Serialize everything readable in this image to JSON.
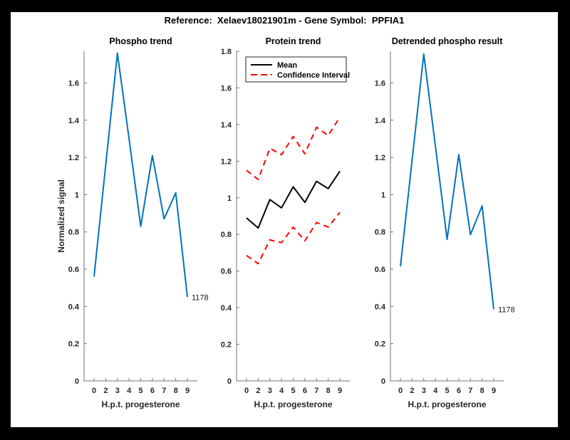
{
  "window": {
    "title": "Reference:  Xelaev18021901m - Gene Symbol:  PPFIA1"
  },
  "figure": {
    "background": "#000000",
    "canvas_color": "#ffffff",
    "axis_color": "#737373",
    "tick_label_color": "#262626",
    "title_color": "#000000",
    "accent_blue": "#0072BD",
    "accent_red": "#FF0000",
    "accent_black": "#000000"
  },
  "chart_data": [
    {
      "type": "line",
      "title": "Phospho trend",
      "xlabel": "H.p.t. progesterone",
      "ylabel": "Normalized signal",
      "x_ticklabels": [
        "0",
        "2",
        "3",
        "4",
        "5",
        "6",
        "7",
        "8",
        "9"
      ],
      "y_ticks": [
        0,
        0.2,
        0.4,
        0.6,
        0.8,
        1,
        1.2,
        1.4,
        1.6
      ],
      "y_ticklabels": [
        "0",
        "0.2",
        "0.4",
        "0.6",
        "0.8",
        "1",
        "1.2",
        "1.4",
        "1.6"
      ],
      "ylim": [
        0,
        1.77
      ],
      "grid": false,
      "series": [
        {
          "name": "phospho-signal",
          "color": "#0072BD",
          "dash": "solid",
          "width": 2,
          "values": [
            0.56,
            1.16,
            1.76,
            1.3,
            0.83,
            1.21,
            0.87,
            1.01,
            0.45
          ]
        }
      ],
      "annotations": [
        {
          "text": "1178",
          "attach": "last-point",
          "series": 0
        }
      ]
    },
    {
      "type": "line",
      "title": "Protein trend",
      "xlabel": "H.p.t. progesterone",
      "ylabel": "",
      "x_ticklabels": [
        "0",
        "2",
        "3",
        "4",
        "5",
        "6",
        "7",
        "8",
        "9"
      ],
      "y_ticks": [
        0,
        0.2,
        0.4,
        0.6,
        0.8,
        1,
        1.2,
        1.4,
        1.6,
        1.8
      ],
      "y_ticklabels": [
        "0",
        "0.2",
        "0.4",
        "0.6",
        "0.8",
        "1",
        "1.2",
        "1.4",
        "1.6",
        "1.8"
      ],
      "ylim": [
        0,
        1.8
      ],
      "grid": false,
      "legend": {
        "position": "top-left",
        "entries": [
          {
            "label": "Mean",
            "color": "#000000",
            "dash": "solid"
          },
          {
            "label": "Confidence Interval",
            "color": "#FF0000",
            "dash": "dashed"
          }
        ]
      },
      "series": [
        {
          "name": "mean",
          "color": "#000000",
          "dash": "solid",
          "width": 2,
          "values": [
            0.89,
            0.835,
            0.99,
            0.945,
            1.06,
            0.975,
            1.09,
            1.05,
            1.145
          ]
        },
        {
          "name": "confidence-interval-upper",
          "color": "#FF0000",
          "dash": "dashed",
          "width": 2,
          "values": [
            1.15,
            1.1,
            1.27,
            1.235,
            1.335,
            1.24,
            1.385,
            1.34,
            1.44
          ]
        },
        {
          "name": "confidence-interval-lower",
          "color": "#FF0000",
          "dash": "dashed",
          "width": 2,
          "values": [
            0.685,
            0.64,
            0.77,
            0.755,
            0.84,
            0.765,
            0.865,
            0.84,
            0.92
          ]
        }
      ],
      "annotations": []
    },
    {
      "type": "line",
      "title": "Detrended phospho result",
      "xlabel": "H.p.t. progesterone",
      "ylabel": "",
      "x_ticklabels": [
        "0",
        "2",
        "3",
        "4",
        "5",
        "6",
        "7",
        "8",
        "9"
      ],
      "y_ticks": [
        0,
        0.2,
        0.4,
        0.6,
        0.8,
        1,
        1.2,
        1.4,
        1.6
      ],
      "y_ticklabels": [
        "0",
        "0.2",
        "0.4",
        "0.6",
        "0.8",
        "1",
        "1.2",
        "1.4",
        "1.6"
      ],
      "ylim": [
        0,
        1.77
      ],
      "grid": false,
      "series": [
        {
          "name": "detrended-phospho-signal",
          "color": "#0072BD",
          "dash": "solid",
          "width": 2,
          "values": [
            0.615,
            1.185,
            1.755,
            1.26,
            0.76,
            1.215,
            0.785,
            0.94,
            0.385
          ]
        }
      ],
      "annotations": [
        {
          "text": "1178",
          "attach": "last-point",
          "series": 0
        }
      ]
    }
  ]
}
